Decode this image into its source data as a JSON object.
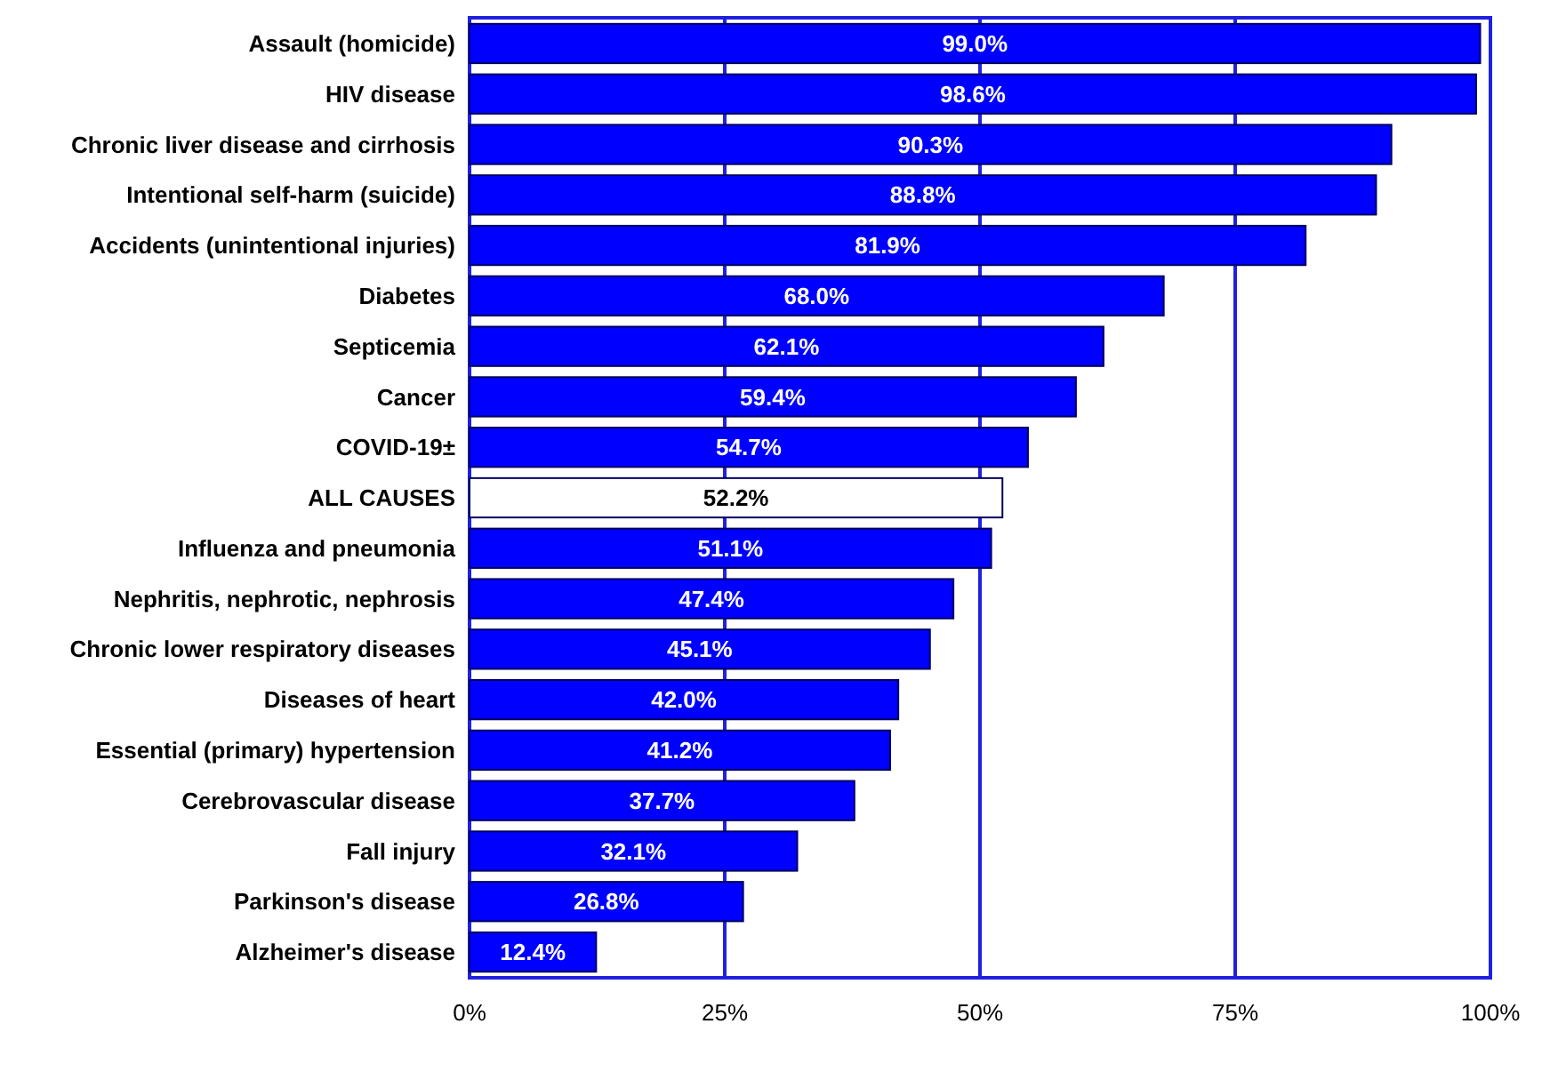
{
  "chart_data": {
    "type": "bar",
    "orientation": "horizontal",
    "categories": [
      "Assault (homicide)",
      "HIV disease",
      "Chronic liver disease and cirrhosis",
      "Intentional self-harm (suicide)",
      "Accidents (unintentional injuries)",
      "Diabetes",
      "Septicemia",
      "Cancer",
      "COVID-19±",
      "ALL CAUSES",
      "Influenza and pneumonia",
      "Nephritis, nephrotic, nephrosis",
      "Chronic lower respiratory diseases",
      "Diseases of heart",
      "Essential (primary) hypertension",
      "Cerebrovascular disease",
      "Fall injury",
      "Parkinson's disease",
      "Alzheimer's disease"
    ],
    "values": [
      99.0,
      98.6,
      90.3,
      88.8,
      81.9,
      68.0,
      62.1,
      59.4,
      54.7,
      52.2,
      51.1,
      47.4,
      45.1,
      42.0,
      41.2,
      37.7,
      32.1,
      26.8,
      12.4
    ],
    "colors": [
      "#0000ff",
      "#0000ff",
      "#0000ff",
      "#0000ff",
      "#0000ff",
      "#0000ff",
      "#0000ff",
      "#0000ff",
      "#0000ff",
      "#ffffff",
      "#0000ff",
      "#0000ff",
      "#0000ff",
      "#0000ff",
      "#0000ff",
      "#0000ff",
      "#0000ff",
      "#0000ff",
      "#0000ff"
    ],
    "value_labels": [
      "99.0%",
      "98.6%",
      "90.3%",
      "88.8%",
      "81.9%",
      "68.0%",
      "62.1%",
      "59.4%",
      "54.7%",
      "52.2%",
      "51.1%",
      "47.4%",
      "45.1%",
      "42.0%",
      "41.2%",
      "37.7%",
      "32.1%",
      "26.8%",
      "12.4%"
    ],
    "xlim": [
      0,
      100
    ],
    "xticks": [
      {
        "value": 0,
        "label": "0%"
      },
      {
        "value": 25,
        "label": "25%"
      },
      {
        "value": 50,
        "label": "50%"
      },
      {
        "value": 75,
        "label": "75%"
      },
      {
        "value": 100,
        "label": "100%"
      }
    ],
    "grid": "x"
  }
}
